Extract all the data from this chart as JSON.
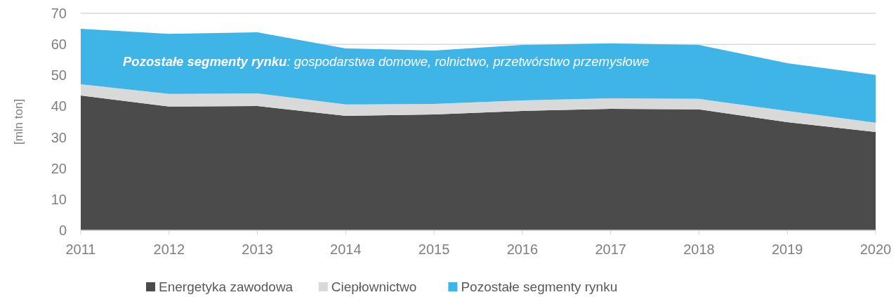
{
  "chart_data": {
    "type": "area",
    "stacked": true,
    "categories": [
      "2011",
      "2012",
      "2013",
      "2014",
      "2015",
      "2016",
      "2017",
      "2018",
      "2019",
      "2020"
    ],
    "series": [
      {
        "name": "Energetyka zawodowa",
        "color": "#4b4b4b",
        "values": [
          43.5,
          39.9,
          40.1,
          36.9,
          37.4,
          38.5,
          39.2,
          39.0,
          34.9,
          31.7
        ]
      },
      {
        "name": "Ciepłownictwo",
        "color": "#d9d9d9",
        "values": [
          3.6,
          4.1,
          4.1,
          3.7,
          3.4,
          3.4,
          3.4,
          3.4,
          3.6,
          3.0
        ]
      },
      {
        "name": "Pozostałe segmenty rynku",
        "color": "#3fb4e6",
        "values": [
          17.9,
          19.4,
          19.7,
          18.1,
          17.2,
          17.9,
          17.7,
          17.4,
          15.4,
          15.4
        ]
      }
    ],
    "ylabel": "[mln ton]",
    "ylim": [
      0,
      70
    ],
    "yticks": [
      0,
      10,
      20,
      30,
      40,
      50,
      60,
      70
    ],
    "grid": "y",
    "legend": "bottom",
    "annotations": [
      "Pozostałe segmenty rynku: gospodarstwa domowe, rolnictwo, przetwórstwo przemysłowe"
    ]
  }
}
